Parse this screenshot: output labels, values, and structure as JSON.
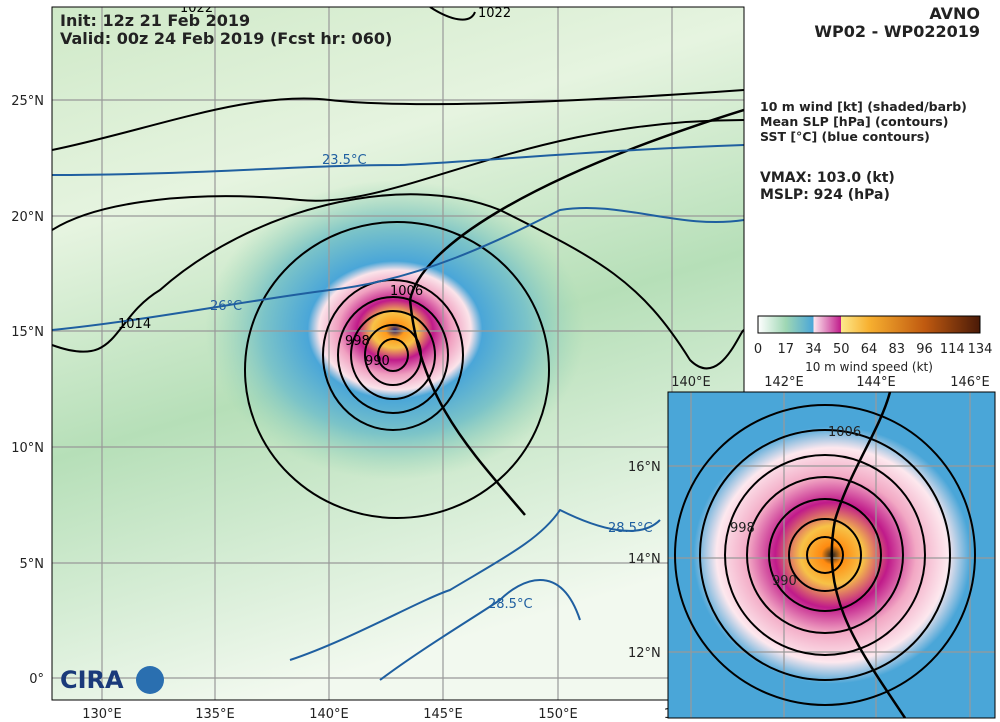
{
  "header": {
    "init": "Init:   12z 21 Feb 2019",
    "valid": "Valid: 00z 24 Feb 2019 (Fcst hr: 060)",
    "model": "AVNO",
    "storm": "WP02 - WP022019"
  },
  "legend": {
    "lines": [
      "10 m wind [kt] (shaded/barb)",
      "Mean SLP [hPa] (contours)",
      "SST [°C] (blue contours)"
    ],
    "vmax": "VMAX: 103.0 (kt)",
    "mslp": "MSLP:  924 (hPa)"
  },
  "colorbar": {
    "ticks": [
      "0",
      "17",
      "34",
      "50",
      "64",
      "83",
      "96",
      "114",
      "134"
    ],
    "label": "10 m wind speed (kt)"
  },
  "map": {
    "lat_labels": [
      "25°N",
      "20°N",
      "15°N",
      "10°N",
      "5°N",
      "0°"
    ],
    "lon_labels": [
      "130°E",
      "135°E",
      "140°E",
      "145°E",
      "150°E",
      "15"
    ],
    "contour_labels": [
      "1022",
      "1022",
      "1006",
      "998",
      "990",
      "1014",
      "23.5°C",
      "26°C",
      "28.5°C",
      "28.5°C"
    ],
    "logo": "CIRA"
  },
  "inset": {
    "lon_labels": [
      "140°E",
      "142°E",
      "144°E",
      "146°E"
    ],
    "lat_labels": [
      "16°N",
      "14°N",
      "12°N"
    ],
    "contour_labels": [
      "1006",
      "998",
      "990"
    ]
  }
}
